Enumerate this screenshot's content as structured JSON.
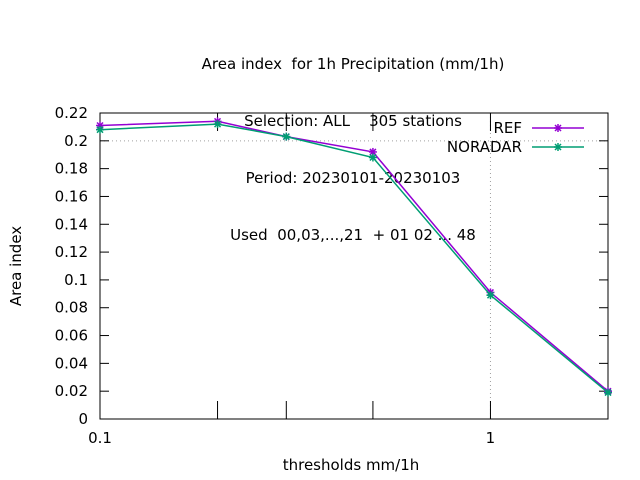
{
  "title_lines": [
    "Area index  for 1h Precipitation (mm/1h)",
    "Selection: ALL    305 stations",
    "Period: 20230101-20230103",
    "Used  00,03,...,21  + 01 02 ... 48"
  ],
  "chart_data": {
    "type": "line",
    "xlabel": "thresholds mm/1h",
    "ylabel": "Area index",
    "xscale": "log",
    "xlim": [
      0.1,
      2
    ],
    "ylim": [
      0,
      0.22
    ],
    "x_tick_labels": [
      "0.1",
      "1"
    ],
    "x_ticks": [
      0.1,
      0.2,
      0.3,
      0.5,
      1,
      2
    ],
    "y_ticks": [
      0,
      0.02,
      0.04,
      0.06,
      0.08,
      0.1,
      0.12,
      0.14,
      0.16,
      0.18,
      0.2,
      0.22
    ],
    "y_tick_labels": [
      "0",
      "0.02",
      "0.04",
      "0.06",
      "0.08",
      "0.1",
      "0.12",
      "0.14",
      "0.16",
      "0.18",
      "0.2",
      "0.22"
    ],
    "x": [
      0.1,
      0.2,
      0.3,
      0.5,
      1,
      2
    ],
    "series": [
      {
        "name": "REF",
        "color": "#9400d3",
        "values": [
          0.211,
          0.214,
          0.203,
          0.192,
          0.091,
          0.02
        ]
      },
      {
        "name": "NORADAR",
        "color": "#009e73",
        "values": [
          0.208,
          0.212,
          0.203,
          0.188,
          0.089,
          0.019
        ]
      }
    ],
    "grid": "dotted lines at x = 1 and y = 0.2",
    "legend_position": "top-right"
  }
}
